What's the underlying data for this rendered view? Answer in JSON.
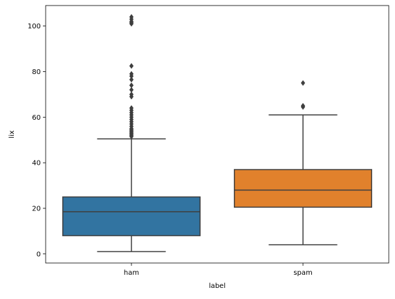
{
  "chart_data": {
    "type": "box",
    "xlabel": "label",
    "ylabel": "lix",
    "ylim": [
      -4,
      109
    ],
    "yticks": [
      0,
      20,
      40,
      60,
      80,
      100
    ],
    "categories": [
      "ham",
      "spam"
    ],
    "boxes": [
      {
        "name": "ham",
        "color": "#3274a1",
        "whisker_low": 1,
        "q1": 8,
        "median": 18.5,
        "q3": 25,
        "whisker_high": 50.5,
        "outliers": [
          51.5,
          52,
          52.5,
          53,
          53.5,
          54,
          54.5,
          55,
          56,
          57,
          58,
          59,
          60,
          61,
          62,
          63,
          64,
          69,
          70,
          72,
          74,
          76.5,
          78,
          79,
          82.5,
          101,
          101.5,
          102,
          103,
          104
        ]
      },
      {
        "name": "spam",
        "color": "#e1812c",
        "whisker_low": 4,
        "q1": 20.5,
        "median": 28,
        "q3": 37,
        "whisker_high": 61,
        "outliers": [
          64.5,
          65,
          75
        ]
      }
    ]
  }
}
